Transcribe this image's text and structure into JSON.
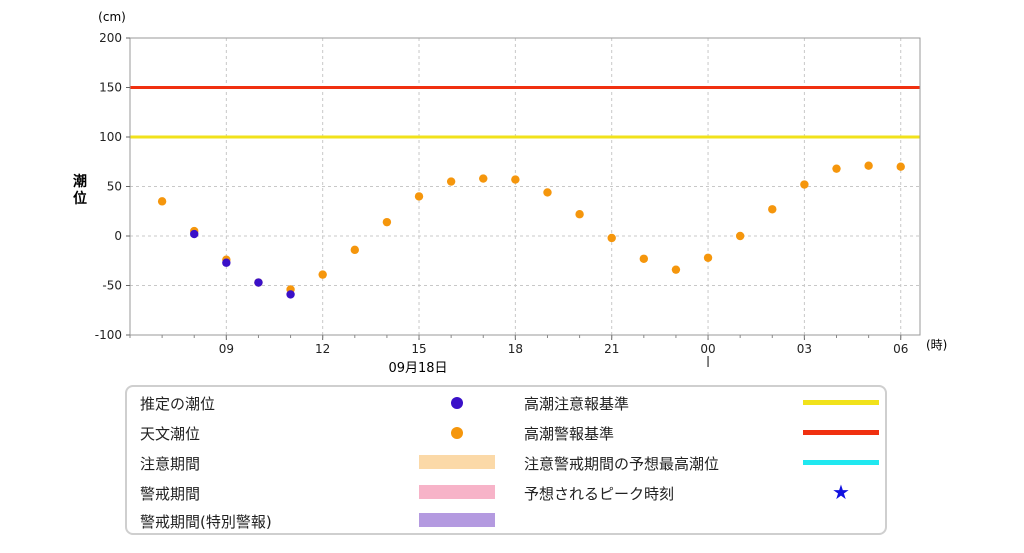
{
  "chart_data": {
    "type": "scatter",
    "ylabel": "潮位",
    "y_unit": "(cm)",
    "x_unit": "(時)",
    "ylim": [
      -100,
      200
    ],
    "yticks": [
      -100,
      -50,
      0,
      50,
      100,
      150,
      200
    ],
    "x_range_hours": [
      6,
      30.6
    ],
    "xticks": [
      {
        "hour": 9,
        "label": "09"
      },
      {
        "hour": 12,
        "label": "12"
      },
      {
        "hour": 15,
        "label": "15"
      },
      {
        "hour": 18,
        "label": "18"
      },
      {
        "hour": 21,
        "label": "21"
      },
      {
        "hour": 24,
        "label": "00"
      },
      {
        "hour": 27,
        "label": "03"
      },
      {
        "hour": 30,
        "label": "06"
      }
    ],
    "date_label": "09月18日",
    "day_boundary_hour": 24,
    "grid": true,
    "thresholds": [
      {
        "name": "高潮注意報基準",
        "value": 100,
        "color": "#f1e21b"
      },
      {
        "name": "高潮警報基準",
        "value": 150,
        "color": "#f03010"
      }
    ],
    "series": [
      {
        "name": "天文潮位",
        "color": "#f5960c",
        "x": [
          7,
          8,
          9,
          10,
          11,
          12,
          13,
          14,
          15,
          16,
          17,
          18,
          19,
          20,
          21,
          22,
          23,
          24,
          25,
          26,
          27,
          28,
          29,
          30
        ],
        "y": [
          35,
          5,
          -24,
          -47,
          -54,
          -39,
          -14,
          14,
          40,
          55,
          58,
          57,
          44,
          22,
          -2,
          -23,
          -34,
          -22,
          0,
          27,
          52,
          68,
          71,
          70
        ]
      },
      {
        "name": "推定の潮位",
        "color": "#3a10c8",
        "x": [
          8,
          9,
          10,
          11
        ],
        "y": [
          2,
          -27,
          -47,
          -59
        ]
      }
    ]
  },
  "legend": [
    {
      "label": "推定の潮位",
      "kind": "dot",
      "color": "#3a10c8"
    },
    {
      "label": "天文潮位",
      "kind": "dot",
      "color": "#f5960c"
    },
    {
      "label": "注意期間",
      "kind": "bar",
      "color": "#fbd9a8"
    },
    {
      "label": "警戒期間",
      "kind": "bar",
      "color": "#f7b3c8"
    },
    {
      "label": "警戒期間(特別警報)",
      "kind": "bar",
      "color": "#b49ae0"
    },
    {
      "label": "高潮注意報基準",
      "kind": "line",
      "color": "#f1e21b"
    },
    {
      "label": "高潮警報基準",
      "kind": "line",
      "color": "#f03010"
    },
    {
      "label": "注意警戒期間の予想最高潮位",
      "kind": "line",
      "color": "#20e8f0"
    },
    {
      "label": "予想されるピーク時刻",
      "kind": "star",
      "color": "#1010e0"
    }
  ]
}
